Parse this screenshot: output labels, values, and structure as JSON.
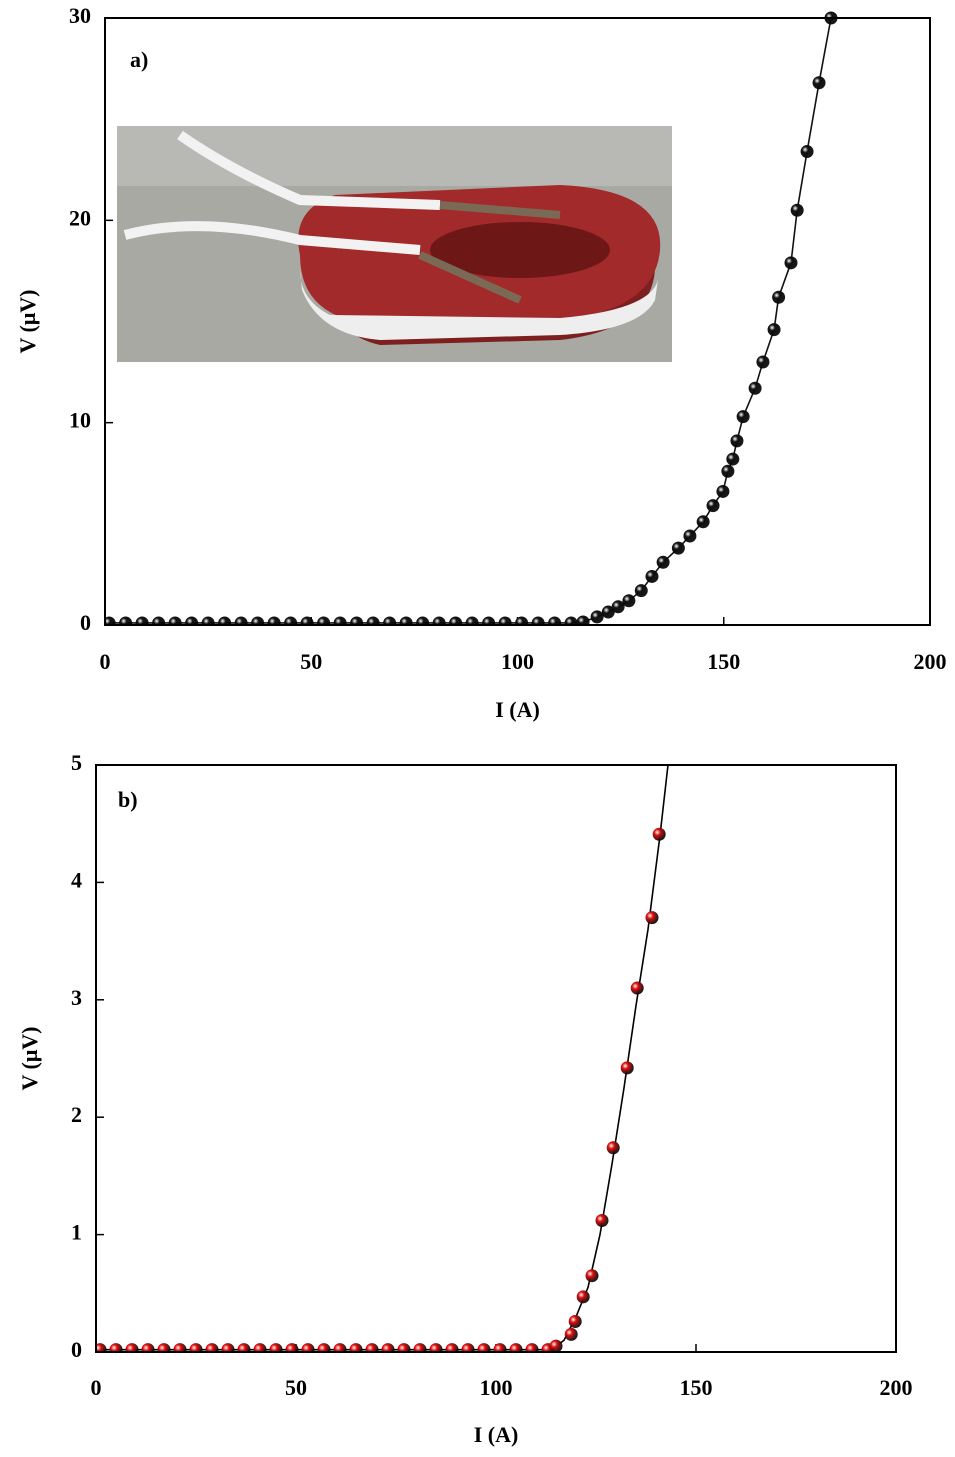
{
  "chart_data": [
    {
      "type": "line",
      "annotation": "a)",
      "xlabel": "I (A)",
      "ylabel": "V (μV)",
      "xlim": [
        0,
        200
      ],
      "xticks": [
        0,
        50,
        100,
        150,
        200
      ],
      "ylim": [
        0,
        30
      ],
      "yticks": [
        0,
        10,
        20,
        30
      ],
      "series": [
        {
          "color": "#111111",
          "style": "line-markers",
          "x": [
            1,
            5,
            9,
            13,
            17,
            21,
            25,
            29,
            33,
            37,
            41,
            45,
            49,
            53,
            57,
            61,
            65,
            69,
            73,
            77,
            81,
            85,
            89,
            93,
            97,
            101,
            105,
            109,
            113,
            115.9,
            119.3,
            122,
            124.4,
            127,
            130,
            132.6,
            135.3,
            139,
            141.8,
            145,
            147.4,
            149.8,
            151,
            152.2,
            153.2,
            154.7,
            157.6,
            159.5,
            162.2,
            163.3,
            166.3,
            167.8,
            170.2,
            173.1,
            176
          ],
          "values": [
            0.1,
            0.1,
            0.1,
            0.1,
            0.1,
            0.1,
            0.1,
            0.1,
            0.1,
            0.1,
            0.1,
            0.1,
            0.1,
            0.1,
            0.1,
            0.1,
            0.1,
            0.1,
            0.1,
            0.1,
            0.1,
            0.1,
            0.1,
            0.1,
            0.1,
            0.1,
            0.1,
            0.1,
            0.1,
            0.15,
            0.4,
            0.64,
            0.9,
            1.2,
            1.7,
            2.4,
            3.1,
            3.8,
            4.4,
            5.1,
            5.9,
            6.6,
            7.6,
            8.2,
            9.1,
            10.3,
            11.7,
            13,
            14.6,
            16.2,
            17.9,
            20.5,
            23.4,
            26.8,
            30
          ]
        }
      ]
    },
    {
      "type": "line",
      "annotation": "b)",
      "xlabel": "I (A)",
      "ylabel": "V (μV)",
      "xlim": [
        0,
        200
      ],
      "xticks": [
        0,
        50,
        100,
        150,
        200
      ],
      "ylim": [
        0,
        5
      ],
      "yticks": [
        0,
        1,
        2,
        3,
        4,
        5
      ],
      "series": [
        {
          "color": "#000000",
          "style": "line",
          "x": [
            0,
            114,
            117,
            120,
            123,
            126,
            129,
            132,
            135,
            138,
            141,
            143
          ],
          "values": [
            0.02,
            0.02,
            0.1,
            0.3,
            0.55,
            1.0,
            1.6,
            2.25,
            2.95,
            3.6,
            4.4,
            5
          ]
        },
        {
          "color": "#e01010",
          "style": "markers",
          "x": [
            1,
            5,
            9,
            13,
            17,
            21,
            25,
            29,
            33,
            37,
            41,
            45,
            49,
            53,
            57,
            61,
            65,
            69,
            73,
            77,
            81,
            85,
            89,
            93,
            97,
            101,
            105,
            109,
            113,
            115,
            118.8,
            119.8,
            121.8,
            124,
            126.5,
            129.3,
            132.8,
            135.3,
            139,
            140.8
          ],
          "values": [
            0.02,
            0.02,
            0.02,
            0.02,
            0.02,
            0.02,
            0.02,
            0.02,
            0.02,
            0.02,
            0.02,
            0.02,
            0.02,
            0.02,
            0.02,
            0.02,
            0.02,
            0.02,
            0.02,
            0.02,
            0.02,
            0.02,
            0.02,
            0.02,
            0.02,
            0.02,
            0.02,
            0.02,
            0.02,
            0.05,
            0.15,
            0.26,
            0.47,
            0.65,
            1.12,
            1.74,
            2.42,
            3.1,
            3.7,
            4.41
          ]
        }
      ]
    }
  ]
}
